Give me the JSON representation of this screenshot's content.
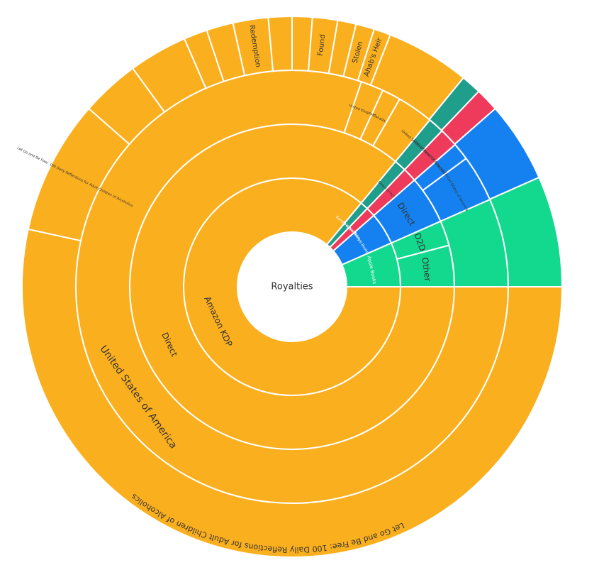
{
  "chart_data": {
    "type": "sunburst",
    "title": "",
    "root_label": "Royalties",
    "colors": {
      "Amazon KDP": "#FAAF1E",
      "Barnes & Noble": "#1F9E8C",
      "Rakuten Kobo": "#EE3B5B",
      "Google Books": "#1581F0",
      "Apple Books": "#13D98E"
    },
    "rings": {
      "platform": [
        {
          "label": "Amazon KDP",
          "value": 86.0
        },
        {
          "label": "Barnes & Noble",
          "value": 1.2
        },
        {
          "label": "Rakuten Kobo",
          "value": 1.4
        },
        {
          "label": "Google Books",
          "value": 4.8
        },
        {
          "label": "Apple Books",
          "value": 6.6
        }
      ],
      "channel": [
        {
          "label": "Direct",
          "platform": "Amazon KDP",
          "value": 86.0
        },
        {
          "label": "Direct",
          "platform": "Barnes & Noble",
          "value": 1.2
        },
        {
          "label": "Direct",
          "platform": "Rakuten Kobo",
          "value": 1.4
        },
        {
          "label": "Direct",
          "platform": "Google Books",
          "value": 4.8
        },
        {
          "label": "D2D",
          "platform": "Apple Books",
          "value": 2.5
        },
        {
          "label": "Other",
          "platform": "Apple Books",
          "value": 4.1
        }
      ],
      "country": [
        {
          "label": "United States of America",
          "platform": "Amazon KDP",
          "value": 80.2
        },
        {
          "label": "United Kingdom",
          "platform": "Amazon KDP",
          "value": 1.7
        },
        {
          "label": "Canada",
          "platform": "Amazon KDP",
          "value": 1.4
        },
        {
          "label": "",
          "platform": "Amazon KDP",
          "value": 2.7
        },
        {
          "label": "United States of America",
          "platform": "Barnes & Noble",
          "value": 1.2
        },
        {
          "label": "United States of America",
          "platform": "Rakuten Kobo",
          "value": 1.4
        },
        {
          "label": "Canada",
          "platform": "Google Books",
          "value": 1.3
        },
        {
          "label": "United States of America",
          "platform": "Google Books",
          "value": 3.5
        },
        {
          "label": "",
          "platform": "Apple Books",
          "value": 6.6
        }
      ],
      "book": [
        {
          "label": "Let Go and Be Free: 100 Daily Reflections for Adult Children of Alcoholics",
          "platform": "Amazon KDP",
          "value": 53.2,
          "orient": "curve"
        },
        {
          "label": "Let Go and Be Free: 100 Daily Reflections for Adult Children of Alcoholics",
          "platform": "Amazon KDP",
          "value": 8.0,
          "orient": "radial"
        },
        {
          "label": "",
          "platform": "Amazon KDP",
          "value": 3.5,
          "orient": "none"
        },
        {
          "label": "",
          "platform": "Amazon KDP",
          "value": 3.5,
          "orient": "none"
        },
        {
          "label": "",
          "platform": "Amazon KDP",
          "value": 1.4,
          "orient": "none"
        },
        {
          "label": "",
          "platform": "Amazon KDP",
          "value": 1.6,
          "orient": "none"
        },
        {
          "label": "Redemption",
          "platform": "Amazon KDP",
          "value": 2.1,
          "orient": "radial"
        },
        {
          "label": "",
          "platform": "Amazon KDP",
          "value": 1.4,
          "orient": "none"
        },
        {
          "label": "",
          "platform": "Amazon KDP",
          "value": 1.2,
          "orient": "none"
        },
        {
          "label": "Found",
          "platform": "Amazon KDP",
          "value": 1.5,
          "orient": "radial"
        },
        {
          "label": "",
          "platform": "Amazon KDP",
          "value": 1.1,
          "orient": "none"
        },
        {
          "label": "Stolen",
          "platform": "Amazon KDP",
          "value": 1.1,
          "orient": "radial"
        },
        {
          "label": "Ahab's Heir",
          "platform": "Amazon KDP",
          "value": 1.0,
          "orient": "radial"
        },
        {
          "label": "",
          "platform": "Amazon KDP",
          "value": 5.0,
          "orient": "none"
        },
        {
          "label": "",
          "platform": "Barnes & Noble",
          "value": 1.2,
          "orient": "none"
        },
        {
          "label": "",
          "platform": "Rakuten Kobo",
          "value": 1.4,
          "orient": "none"
        },
        {
          "label": "",
          "platform": "Google Books",
          "value": 4.8,
          "orient": "none"
        },
        {
          "label": "",
          "platform": "Apple Books",
          "value": 6.6,
          "orient": "none"
        }
      ]
    }
  }
}
